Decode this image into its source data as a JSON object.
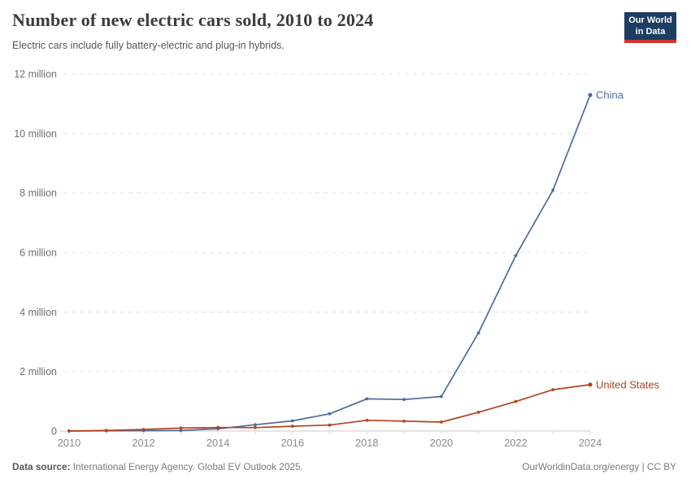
{
  "header": {
    "title": "Number of new electric cars sold, 2010 to 2024",
    "subtitle": "Electric cars include fully battery-electric and plug-in hybrids.",
    "logo": {
      "line1": "Our World",
      "line2": "in Data",
      "bg_color": "#1d3d63",
      "accent_color": "#d0342c"
    }
  },
  "footer": {
    "source_label": "Data source:",
    "source_text": " International Energy Agency. Global EV Outlook 2025.",
    "attribution": "OurWorldinData.org/energy | CC BY"
  },
  "chart_data": {
    "type": "line",
    "title": "Number of new electric cars sold, 2010 to 2024",
    "subtitle": "Electric cars include fully battery-electric and plug-in hybrids.",
    "unit": "million cars",
    "x": [
      2010,
      2011,
      2012,
      2013,
      2014,
      2015,
      2016,
      2017,
      2018,
      2019,
      2020,
      2021,
      2022,
      2023,
      2024
    ],
    "x_range": [
      2010,
      2024
    ],
    "ylim": [
      0,
      12
    ],
    "grid": "horizontal-dashed",
    "legend": "end-of-line-labels",
    "y_ticks": {
      "values": [
        0,
        2,
        4,
        6,
        8,
        10,
        12
      ],
      "labels": [
        "0",
        "2 million",
        "4 million",
        "6 million",
        "8 million",
        "10 million",
        "12 million"
      ]
    },
    "x_ticks": {
      "labeled": [
        2010,
        2012,
        2014,
        2016,
        2018,
        2020,
        2022,
        2024
      ],
      "minor_tick_every_year": true
    },
    "series": [
      {
        "name": "China",
        "color": "#4c6a9f",
        "values": [
          0.001,
          0.005,
          0.01,
          0.016,
          0.073,
          0.21,
          0.34,
          0.58,
          1.08,
          1.06,
          1.16,
          3.3,
          5.9,
          8.1,
          11.3
        ]
      },
      {
        "name": "United States",
        "color": "#b5431c",
        "values": [
          0.001,
          0.018,
          0.053,
          0.097,
          0.118,
          0.114,
          0.16,
          0.2,
          0.36,
          0.33,
          0.3,
          0.63,
          0.99,
          1.39,
          1.56
        ]
      }
    ]
  }
}
